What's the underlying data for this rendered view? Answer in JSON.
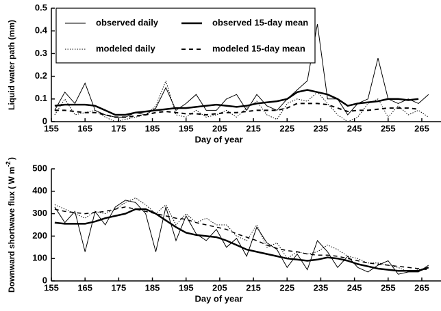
{
  "chart_data": [
    {
      "type": "line",
      "xlabel": "Day of year",
      "ylabel": "Liquid water path (mm)",
      "xlim": [
        155,
        270.7
      ],
      "xticks": [
        155,
        165,
        175,
        185,
        195,
        205,
        215,
        225,
        235,
        245,
        255,
        265
      ],
      "ylim": [
        0,
        0.5
      ],
      "yticks": [
        0,
        0.1,
        0.2,
        0.3,
        0.4,
        0.5
      ],
      "legend": "upper left",
      "x": [
        156,
        159,
        162,
        165,
        168,
        171,
        174,
        177,
        180,
        183,
        186,
        189,
        192,
        195,
        198,
        201,
        204,
        207,
        210,
        213,
        216,
        219,
        222,
        225,
        228,
        231,
        234,
        237,
        240,
        243,
        246,
        249,
        252,
        255,
        258,
        261,
        264,
        267
      ],
      "series": [
        {
          "name": "observed daily",
          "color": "#000000",
          "linestyle": "solid",
          "linewidth": 1,
          "values": [
            0.05,
            0.13,
            0.08,
            0.17,
            0.05,
            0.03,
            0.02,
            0.02,
            0.04,
            0.03,
            0.06,
            0.15,
            0.05,
            0.08,
            0.12,
            0.05,
            0.05,
            0.1,
            0.12,
            0.05,
            0.12,
            0.07,
            0.05,
            0.1,
            0.14,
            0.18,
            0.43,
            0.1,
            0.1,
            0.03,
            0.08,
            0.1,
            0.28,
            0.1,
            0.08,
            0.1,
            0.08,
            0.12
          ]
        },
        {
          "name": "observed 15-day mean",
          "color": "#000000",
          "linestyle": "solid",
          "linewidth": 2.5,
          "values": [
            0.07,
            0.075,
            0.075,
            0.075,
            0.07,
            0.05,
            0.03,
            0.03,
            0.04,
            0.045,
            0.05,
            0.055,
            0.06,
            0.06,
            0.065,
            0.07,
            0.075,
            0.07,
            0.065,
            0.07,
            0.08,
            0.085,
            0.09,
            0.1,
            0.13,
            0.14,
            0.13,
            0.12,
            0.1,
            0.07,
            0.08,
            0.085,
            0.09,
            0.1,
            0.1,
            0.095,
            0.1,
            null
          ]
        },
        {
          "name": "modeled daily",
          "color": "#000000",
          "linestyle": "dotted",
          "linewidth": 1,
          "values": [
            0.03,
            0.1,
            0.03,
            0.04,
            0.05,
            0.02,
            0,
            0.01,
            0.02,
            0.03,
            0.07,
            0.18,
            0.03,
            0.02,
            0.05,
            0.02,
            0.03,
            0.05,
            0.02,
            0.06,
            0.09,
            0.03,
            0.01,
            0.08,
            0.1,
            0.09,
            0.13,
            0.08,
            0.03,
            0,
            0.02,
            0.08,
            0.1,
            0.02,
            0.07,
            0.03,
            0.05,
            0.02
          ]
        },
        {
          "name": "modeled 15-day mean",
          "color": "#000000",
          "linestyle": "dashed",
          "linewidth": 2,
          "values": [
            0.05,
            0.05,
            0.045,
            0.04,
            0.04,
            0.03,
            0.02,
            0.02,
            0.025,
            0.03,
            0.04,
            0.045,
            0.04,
            0.035,
            0.035,
            0.03,
            0.035,
            0.04,
            0.04,
            0.045,
            0.05,
            0.05,
            0.05,
            0.06,
            0.08,
            0.08,
            0.08,
            0.075,
            0.06,
            0.045,
            0.05,
            0.05,
            0.055,
            0.06,
            0.06,
            0.06,
            0.055,
            null
          ]
        }
      ]
    },
    {
      "type": "line",
      "xlabel": "Day of year",
      "ylabel": "Downward shortwave flux ( W m",
      "ylabel_sup": "-2",
      "ylabel_end": ")",
      "xlim": [
        155,
        270.7
      ],
      "xticks": [
        155,
        165,
        175,
        185,
        195,
        205,
        215,
        225,
        235,
        245,
        255,
        265
      ],
      "ylim": [
        0,
        500
      ],
      "yticks": [
        0,
        100,
        200,
        300,
        400,
        500
      ],
      "x": [
        156,
        159,
        162,
        165,
        168,
        171,
        174,
        177,
        180,
        183,
        186,
        189,
        192,
        195,
        198,
        201,
        204,
        207,
        210,
        213,
        216,
        219,
        222,
        225,
        228,
        231,
        234,
        237,
        240,
        243,
        246,
        249,
        252,
        255,
        258,
        261,
        264,
        267
      ],
      "series": [
        {
          "color": "#000000",
          "linestyle": "solid",
          "linewidth": 1,
          "values": [
            330,
            260,
            310,
            130,
            310,
            250,
            330,
            360,
            350,
            300,
            130,
            330,
            180,
            290,
            210,
            180,
            230,
            150,
            190,
            110,
            240,
            170,
            140,
            60,
            120,
            50,
            180,
            130,
            60,
            110,
            60,
            40,
            70,
            90,
            30,
            40,
            40,
            70
          ]
        },
        {
          "color": "#000000",
          "linestyle": "solid",
          "linewidth": 2.5,
          "values": [
            260,
            255,
            255,
            255,
            265,
            280,
            290,
            300,
            320,
            320,
            300,
            270,
            240,
            215,
            205,
            200,
            195,
            180,
            160,
            140,
            130,
            120,
            110,
            100,
            95,
            90,
            95,
            105,
            100,
            90,
            75,
            65,
            55,
            50,
            45,
            45,
            45,
            60
          ]
        },
        {
          "color": "#000000",
          "linestyle": "dotted",
          "linewidth": 1,
          "values": [
            340,
            320,
            300,
            280,
            310,
            300,
            320,
            350,
            370,
            340,
            300,
            340,
            250,
            300,
            260,
            280,
            250,
            250,
            200,
            180,
            250,
            150,
            170,
            100,
            130,
            120,
            130,
            160,
            140,
            110,
            100,
            80,
            80,
            70,
            60,
            40,
            50,
            60
          ]
        },
        {
          "color": "#000000",
          "linestyle": "dashed",
          "linewidth": 1.5,
          "values": [
            320,
            310,
            305,
            300,
            305,
            310,
            320,
            330,
            320,
            310,
            300,
            290,
            280,
            275,
            260,
            250,
            240,
            230,
            210,
            195,
            180,
            160,
            145,
            135,
            130,
            120,
            115,
            115,
            110,
            100,
            90,
            80,
            75,
            70,
            65,
            60,
            55,
            50
          ]
        }
      ]
    }
  ]
}
